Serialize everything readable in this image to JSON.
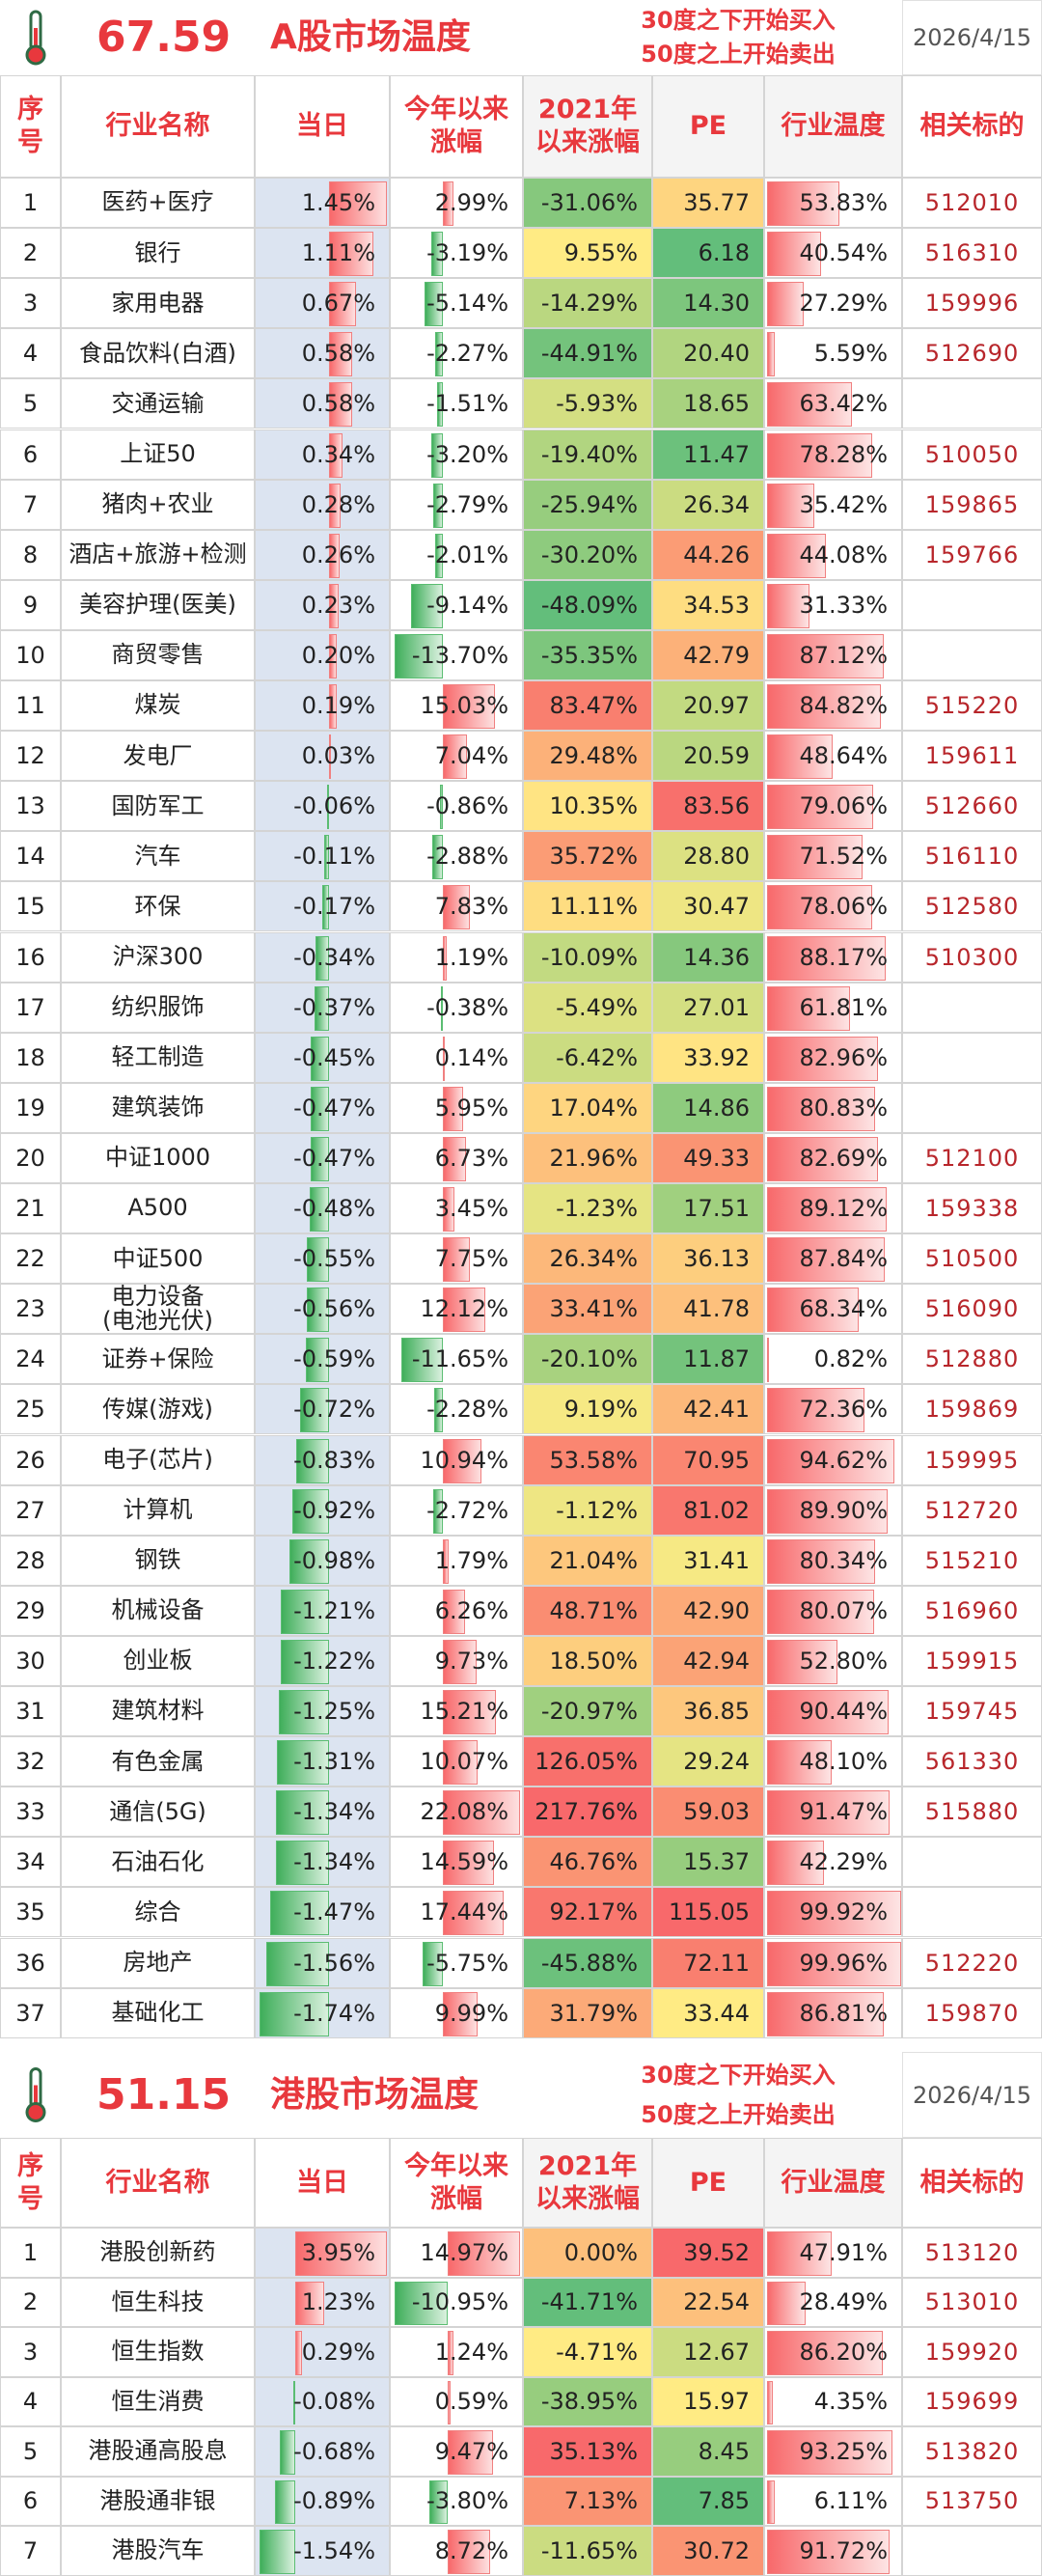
{
  "sections": [
    {
      "index": "67.59",
      "title": "A股市场温度",
      "notes": [
        "30度之下开始买入",
        "50度之上开始卖出"
      ],
      "date": "2026/4/15",
      "headers": [
        "序\n号",
        "行业名称",
        "当日",
        "今年以来\n涨幅",
        "2021年\n以来涨幅",
        "PE",
        "行业温度",
        "相关标的"
      ],
      "rows": [
        [
          "1",
          "医药+医疗",
          "1.45%",
          "2.99%",
          "-31.06%",
          "35.77",
          "53.83%",
          "512010"
        ],
        [
          "2",
          "银行",
          "1.11%",
          "-3.19%",
          "9.55%",
          "6.18",
          "40.54%",
          "516310"
        ],
        [
          "3",
          "家用电器",
          "0.67%",
          "-5.14%",
          "-14.29%",
          "14.30",
          "27.29%",
          "159996"
        ],
        [
          "4",
          "食品饮料(白酒)",
          "0.58%",
          "-2.27%",
          "-44.91%",
          "20.40",
          "5.59%",
          "512690"
        ],
        [
          "5",
          "交通运输",
          "0.58%",
          "-1.51%",
          "-5.93%",
          "18.65",
          "63.42%"
        ],
        [
          "6",
          "上证50",
          "0.34%",
          "-3.20%",
          "-19.40%",
          "11.47",
          "78.28%",
          "510050"
        ],
        [
          "7",
          "猪肉+农业",
          "0.28%",
          "-2.79%",
          "-25.94%",
          "26.34",
          "35.42%",
          "159865"
        ],
        [
          "8",
          "酒店+旅游+检测",
          "0.26%",
          "-2.01%",
          "-30.20%",
          "44.26",
          "44.08%",
          "159766"
        ],
        [
          "9",
          "美容护理(医美)",
          "0.23%",
          "-9.14%",
          "-48.09%",
          "34.53",
          "31.33%"
        ],
        [
          "10",
          "商贸零售",
          "0.20%",
          "-13.70%",
          "-35.35%",
          "42.79",
          "87.12%"
        ],
        [
          "11",
          "煤炭",
          "0.19%",
          "15.03%",
          "83.47%",
          "20.97",
          "84.82%",
          "515220"
        ],
        [
          "12",
          "发电厂",
          "0.03%",
          "7.04%",
          "29.48%",
          "20.59",
          "48.64%",
          "159611"
        ],
        [
          "13",
          "国防军工",
          "-0.06%",
          "-0.86%",
          "10.35%",
          "83.56",
          "79.06%",
          "512660"
        ],
        [
          "14",
          "汽车",
          "-0.11%",
          "-2.88%",
          "35.72%",
          "28.80",
          "71.52%",
          "516110"
        ],
        [
          "15",
          "环保",
          "-0.17%",
          "7.83%",
          "11.11%",
          "30.47",
          "78.06%",
          "512580"
        ],
        [
          "16",
          "沪深300",
          "-0.34%",
          "1.19%",
          "-10.09%",
          "14.36",
          "88.17%",
          "510300"
        ],
        [
          "17",
          "纺织服饰",
          "-0.37%",
          "-0.38%",
          "-5.49%",
          "27.01",
          "61.81%"
        ],
        [
          "18",
          "轻工制造",
          "-0.45%",
          "0.14%",
          "-6.42%",
          "33.92",
          "82.96%"
        ],
        [
          "19",
          "建筑装饰",
          "-0.47%",
          "5.95%",
          "17.04%",
          "14.86",
          "80.83%"
        ],
        [
          "20",
          "中证1000",
          "-0.47%",
          "6.73%",
          "21.96%",
          "49.33",
          "82.69%",
          "512100"
        ],
        [
          "21",
          "A500",
          "-0.48%",
          "3.45%",
          "-1.23%",
          "17.51",
          "89.12%",
          "159338"
        ],
        [
          "22",
          "中证500",
          "-0.55%",
          "7.75%",
          "26.34%",
          "36.13",
          "87.84%",
          "510500"
        ],
        [
          "23",
          "电力设备\n(电池光伏)",
          "-0.56%",
          "12.12%",
          "33.41%",
          "41.78",
          "68.34%",
          "516090"
        ],
        [
          "24",
          "证券+保险",
          "-0.59%",
          "-11.65%",
          "-20.10%",
          "11.87",
          "0.82%",
          "512880"
        ],
        [
          "25",
          "传媒(游戏)",
          "-0.72%",
          "-2.28%",
          "9.19%",
          "42.41",
          "72.36%",
          "159869"
        ],
        [
          "26",
          "电子(芯片)",
          "-0.83%",
          "10.94%",
          "53.58%",
          "70.95",
          "94.62%",
          "159995"
        ],
        [
          "27",
          "计算机",
          "-0.92%",
          "-2.72%",
          "-1.12%",
          "81.02",
          "89.90%",
          "512720"
        ],
        [
          "28",
          "钢铁",
          "-0.98%",
          "1.79%",
          "21.04%",
          "31.41",
          "80.34%",
          "515210"
        ],
        [
          "29",
          "机械设备",
          "-1.21%",
          "6.26%",
          "48.71%",
          "42.90",
          "80.07%",
          "516960"
        ],
        [
          "30",
          "创业板",
          "-1.22%",
          "9.73%",
          "18.50%",
          "42.94",
          "52.80%",
          "159915"
        ],
        [
          "31",
          "建筑材料",
          "-1.25%",
          "15.21%",
          "-20.97%",
          "36.85",
          "90.44%",
          "159745"
        ],
        [
          "32",
          "有色金属",
          "-1.31%",
          "10.07%",
          "126.05%",
          "29.24",
          "48.10%",
          "561330"
        ],
        [
          "33",
          "通信(5G)",
          "-1.34%",
          "22.08%",
          "217.76%",
          "59.03",
          "91.47%",
          "515880"
        ],
        [
          "34",
          "石油石化",
          "-1.34%",
          "14.59%",
          "46.76%",
          "15.37",
          "42.29%"
        ],
        [
          "35",
          "综合",
          "-1.47%",
          "17.44%",
          "92.17%",
          "115.05",
          "99.92%"
        ],
        [
          "36",
          "房地产",
          "-1.56%",
          "-5.75%",
          "-45.88%",
          "72.11",
          "99.96%",
          "512220"
        ],
        [
          "37",
          "基础化工",
          "-1.74%",
          "9.99%",
          "31.79%",
          "33.44",
          "86.81%",
          "159870"
        ]
      ]
    },
    {
      "index": "51.15",
      "title": "港股市场温度",
      "notes": [
        "30度之下开始买入",
        "50度之上开始卖出"
      ],
      "date": "2026/4/15",
      "headers": [
        "序\n号",
        "行业名称",
        "当日",
        "今年以来\n涨幅",
        "2021年\n以来涨幅",
        "PE",
        "行业温度",
        "相关标的"
      ],
      "rows": [
        [
          "1",
          "港股创新药",
          "3.95%",
          "14.97%",
          "0.00%",
          "39.52",
          "47.91%",
          "513120"
        ],
        [
          "2",
          "恒生科技",
          "1.23%",
          "-10.95%",
          "-41.71%",
          "22.54",
          "28.49%",
          "513010"
        ],
        [
          "3",
          "恒生指数",
          "0.29%",
          "1.24%",
          "-4.71%",
          "12.67",
          "86.20%",
          "159920"
        ],
        [
          "4",
          "恒生消费",
          "-0.08%",
          "0.59%",
          "-38.95%",
          "15.97",
          "4.35%",
          "159699"
        ],
        [
          "5",
          "港股通高股息",
          "-0.68%",
          "9.47%",
          "35.13%",
          "8.45",
          "93.25%",
          "513820"
        ],
        [
          "6",
          "港股通非银",
          "-0.89%",
          "-3.80%",
          "7.13%",
          "7.85",
          "6.11%",
          "513750"
        ],
        [
          "7",
          "港股汽车",
          "-1.54%",
          "8.72%",
          "-11.65%",
          "30.72",
          "91.72%"
        ]
      ]
    }
  ]
}
